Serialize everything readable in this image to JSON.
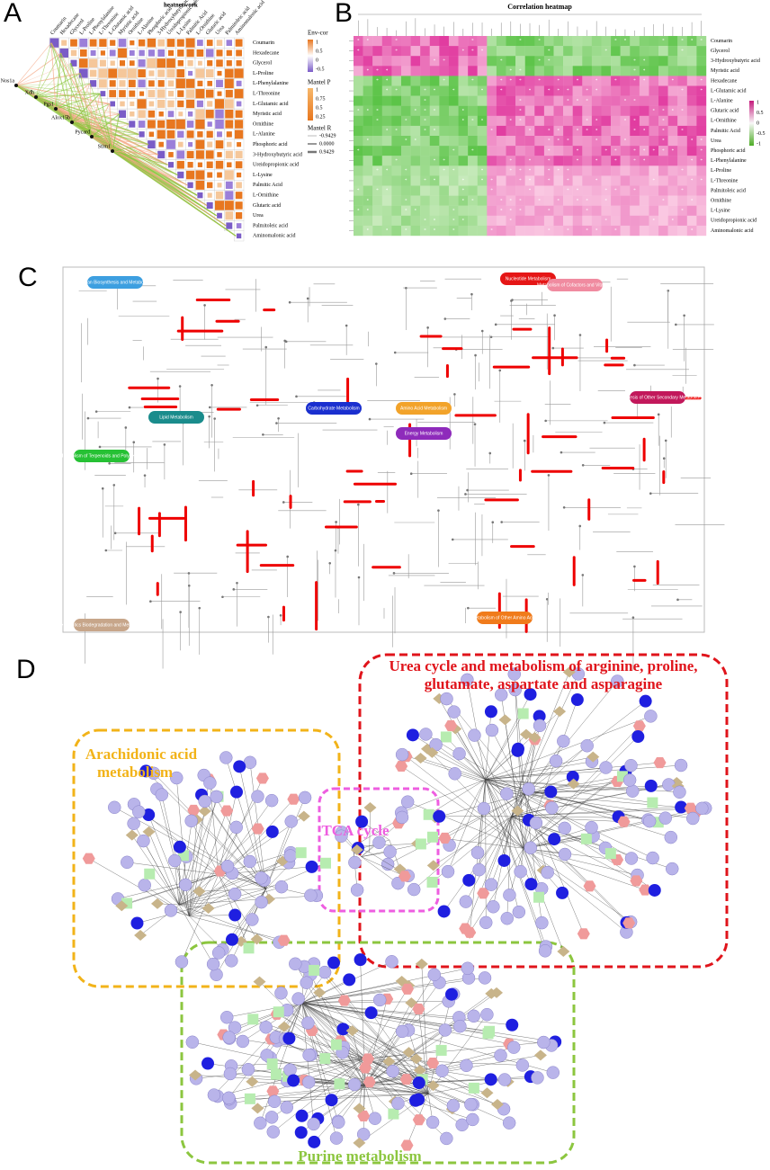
{
  "panel_a": {
    "label": "A",
    "title": "heatnetwork",
    "metabolites": [
      "Coumarin",
      "Hexadecane",
      "Glycerol",
      "L-Proline",
      "L-Phenylalanine",
      "L-Threonine",
      "L-Glutamic acid",
      "Myristic acid",
      "Ornithine",
      "L-Alanine",
      "Phosphoric acid",
      "3-Hydroxybutyric acid",
      "Ureidopropionic acid",
      "L-Lysine",
      "Palmitic Acid",
      "L-Ornithine",
      "Glutaric acid",
      "Urea",
      "Palmitoleic acid",
      "Aminomalonic acid"
    ],
    "genes": [
      "Nos1a",
      "Xdh",
      "Pgs1",
      "Alox15b",
      "Pycard",
      "Stim1"
    ],
    "legend": {
      "env_cor": {
        "title": "Env-cor",
        "ticks": [
          "1",
          "0.5",
          "0",
          "-0.5"
        ]
      },
      "mantel_p": {
        "title": "Mantel P",
        "ticks": [
          "1",
          "0.75",
          "0.5",
          "0.25"
        ]
      },
      "mantel_r": {
        "title": "Mantel R",
        "ticks": [
          "-0.9429",
          "0.0000",
          "0.9429"
        ]
      }
    }
  },
  "panel_b": {
    "label": "B",
    "title": "Correlation heatmap",
    "rows": [
      "Coumarin",
      "Glycerol",
      "3-Hydroxybutyric acid",
      "Myristic acid",
      "Hexadecane",
      "L-Glutamic acid",
      "L-Alanine",
      "Glutaric acid",
      "L-Ornithine",
      "Palmitic Acid",
      "Urea",
      "Phosphoric acid",
      "L-Phenylalanine",
      "L-Proline",
      "L-Threonine",
      "Palmitoleic acid",
      "Ornithine",
      "L-Lysine",
      "Ureidopropionic acid",
      "Aminomalonic acid"
    ],
    "legend_ticks": [
      "1",
      "0.5",
      "0",
      "-0.5",
      "-1"
    ]
  },
  "panel_c": {
    "label": "C",
    "categories": [
      "Glycan Biosynthesis and Metabolism",
      "Nucleotide Metabolism",
      "Metabolism of Cofactors and Vitamins",
      "Biosynthesis of Other Secondary Metabolites",
      "Carbohydrate Metabolism",
      "Lipid Metabolism",
      "Amino Acid Metabolism",
      "Energy Metabolism",
      "Metabolism of Terpenoids and Polyketides",
      "Xenobiotics Biodegradation and Metabolism",
      "Metabolism of Other Amino Acids"
    ]
  },
  "panel_d": {
    "label": "D",
    "groups": [
      "Urea cycle and metabolism of arginine, proline,",
      "glutamate, aspartate and asparagine",
      "Arachidonic acid",
      "metabolism",
      "TCA cycle",
      "Purine metabolism"
    ]
  }
}
